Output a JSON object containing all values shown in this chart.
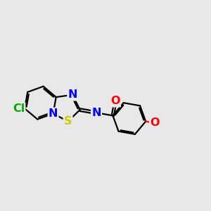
{
  "bg_color": "#e8e8e8",
  "bond_color": "#000000",
  "bond_width": 1.6,
  "atom_colors": {
    "N": "#0000ff",
    "S": "#cccc00",
    "O": "#ff0000",
    "Cl": "#00aa00",
    "C": "#000000"
  },
  "font_size_atom": 11.5
}
